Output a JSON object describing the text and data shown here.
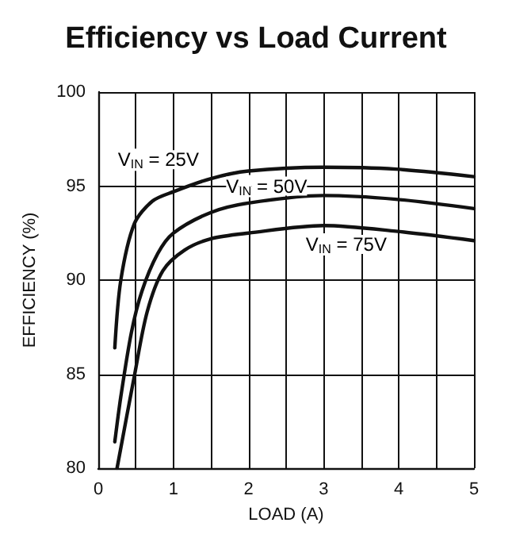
{
  "chart_data": {
    "type": "line",
    "title": "Efficiency vs Load Current",
    "xlabel": "LOAD (A)",
    "ylabel": "EFFICIENCY (%)",
    "xlim": [
      0,
      5
    ],
    "xticks": [
      0,
      {
        "value": 0.5,
        "label": null
      },
      1,
      {
        "value": 1.5,
        "label": null
      },
      2,
      {
        "value": 2.5,
        "label": null
      },
      3,
      {
        "value": 3.5,
        "label": null
      },
      4,
      {
        "value": 4.5,
        "label": null
      },
      5
    ],
    "ylim": [
      80,
      100
    ],
    "yticks": [
      80,
      85,
      90,
      95,
      100
    ],
    "grid": true,
    "marker": "none",
    "line_style": "solid",
    "series": [
      {
        "color": "#111111",
        "x": [
          0.22,
          0.3,
          0.48,
          0.72,
          1.0,
          1.5,
          2.0,
          3.0,
          3.96,
          5
        ],
        "values": [
          86.4,
          90.0,
          93.0,
          94.2,
          94.7,
          95.4,
          95.8,
          96.0,
          95.9,
          95.5
        ]
      },
      {
        "color": "#111111",
        "x": [
          0.22,
          0.3,
          0.44,
          0.58,
          0.79,
          1.0,
          1.5,
          2.0,
          3.0,
          3.96,
          5
        ],
        "values": [
          81.4,
          83.8,
          87.2,
          89.4,
          91.4,
          92.5,
          93.6,
          94.1,
          94.5,
          94.3,
          93.8
        ]
      },
      {
        "color": "#111111",
        "x": [
          0.25,
          0.48,
          0.65,
          0.86,
          1.15,
          1.5,
          2.0,
          3.0,
          3.96,
          5
        ],
        "values": [
          80.0,
          84.9,
          88.3,
          90.5,
          91.6,
          92.2,
          92.5,
          92.9,
          92.6,
          92.1
        ]
      }
    ],
    "annotations": [
      "V$_{IN}$ = 25V",
      "V$_{IN}$ = 50V",
      "V$_{IN}$ = 75V"
    ]
  }
}
